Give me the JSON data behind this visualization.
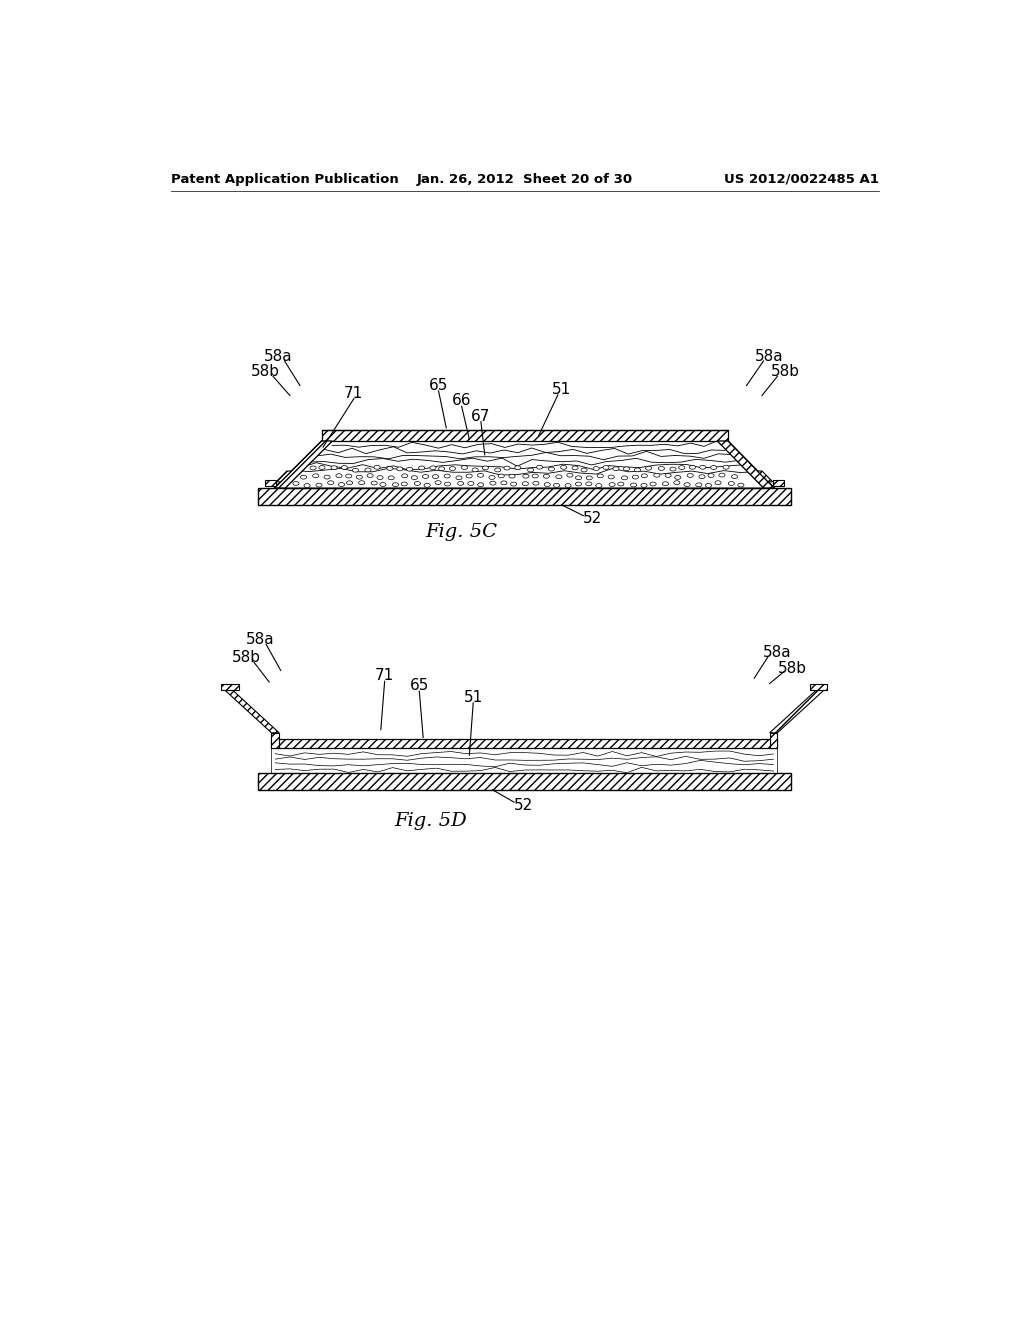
{
  "bg_color": "#ffffff",
  "header_left": "Patent Application Publication",
  "header_mid": "Jan. 26, 2012  Sheet 20 of 30",
  "header_right": "US 2012/0022485 A1",
  "fig5c_label": "Fig. 5C",
  "fig5d_label": "Fig. 5D"
}
